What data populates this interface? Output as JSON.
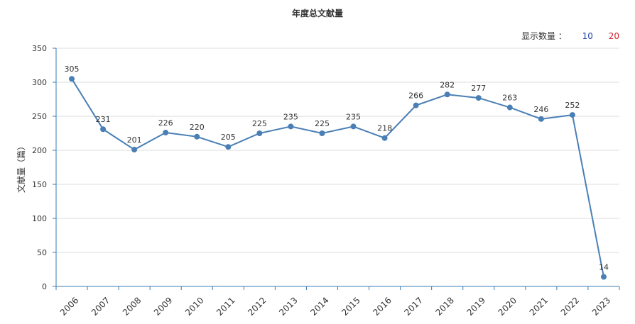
{
  "colors": {
    "line": "#4a7fb5",
    "axis": "#3b7bb0",
    "grid": "#dcdcdc",
    "text": "#333333",
    "opt10": "#1f3fa8",
    "opt20": "#d0212a"
  },
  "display_count": {
    "label": "显示数量 ：",
    "options": [
      "10",
      "20"
    ]
  },
  "chart_data": {
    "type": "line",
    "title": "年度总文献量",
    "xlabel": "",
    "ylabel": "文献量（篇）",
    "ylim": [
      0,
      350
    ],
    "yticks": [
      0,
      50,
      100,
      150,
      200,
      250,
      300,
      350
    ],
    "grid": true,
    "categories": [
      "2006",
      "2007",
      "2008",
      "2009",
      "2010",
      "2011",
      "2012",
      "2013",
      "2014",
      "2015",
      "2016",
      "2017",
      "2018",
      "2019",
      "2020",
      "2021",
      "2022",
      "2023"
    ],
    "values": [
      305,
      231,
      201,
      226,
      220,
      205,
      225,
      235,
      225,
      235,
      218,
      266,
      282,
      277,
      263,
      246,
      252,
      14
    ]
  }
}
